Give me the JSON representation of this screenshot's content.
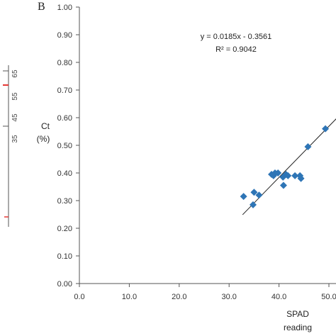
{
  "panel_label": "B",
  "colors": {
    "marker": "#2e75b6",
    "trendline": "#222222",
    "axis": "#555555",
    "left_strip_tick": "#e53935"
  },
  "left_strip": {
    "tick_labels": [
      "65",
      "55",
      "45",
      "35"
    ]
  },
  "chart_data": {
    "type": "scatter",
    "ylabel_line1": "Ct",
    "ylabel_line2": "(%)",
    "xlabel_line1": "SPAD",
    "xlabel_line2": "reading",
    "xlim": [
      0,
      50
    ],
    "ylim": [
      0,
      1
    ],
    "x_ticks": [
      0,
      10,
      20,
      30,
      40,
      50
    ],
    "x_tick_labels": [
      "0.0",
      "10.0",
      "20.0",
      "30.0",
      "40.0",
      "50.0"
    ],
    "y_ticks": [
      0,
      0.1,
      0.2,
      0.3,
      0.4,
      0.5,
      0.6,
      0.7,
      0.8,
      0.9,
      1.0
    ],
    "y_tick_labels": [
      "0.00",
      "0.10",
      "0.20",
      "0.30",
      "0.40",
      "0.50",
      "0.60",
      "0.70",
      "0.80",
      "0.90",
      "1.00"
    ],
    "grid": false,
    "x": [
      32.9,
      34.8,
      35.0,
      36.0,
      38.5,
      38.9,
      39.2,
      39.8,
      40.8,
      40.9,
      41.4,
      41.8,
      43.2,
      44.2,
      44.4,
      45.8,
      49.3
    ],
    "y": [
      0.315,
      0.285,
      0.33,
      0.32,
      0.395,
      0.39,
      0.4,
      0.4,
      0.385,
      0.355,
      0.395,
      0.39,
      0.39,
      0.39,
      0.38,
      0.495,
      0.56
    ],
    "trendline": {
      "slope": 0.0185,
      "intercept": -0.3561,
      "x_range": [
        32.7,
        53.0
      ],
      "equation": "y = 0.0185x - 0.3561",
      "r_squared": "R² = 0.9042"
    }
  }
}
